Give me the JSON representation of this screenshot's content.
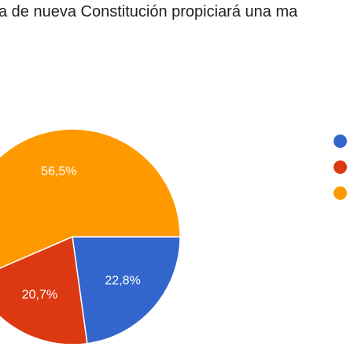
{
  "chart_data": {
    "type": "pie",
    "title": "a de nueva Constitución propiciará una ma",
    "slices": [
      {
        "name": "",
        "value": 22.8,
        "label": "22,8%",
        "color": "#3366cc"
      },
      {
        "name": "",
        "value": 20.7,
        "label": "20,7%",
        "color": "#dc3912"
      },
      {
        "name": "",
        "value": 56.5,
        "label": "56,5%",
        "color": "#ff9900"
      }
    ],
    "legend_position": "right"
  }
}
